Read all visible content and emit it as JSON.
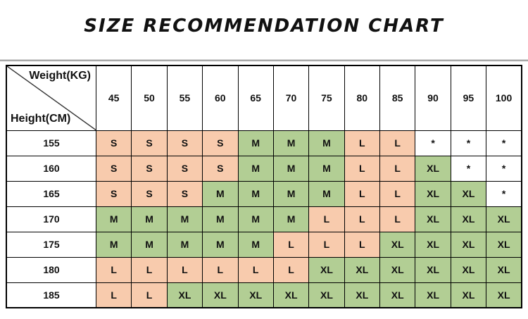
{
  "page": {
    "background": "#ffffff",
    "divider_color": "#8a8a8a"
  },
  "chart_data": {
    "type": "table",
    "title": "SIZE RECOMMENDATION CHART",
    "x_header": "Weight(KG)",
    "y_header": "Height(CM)",
    "columns_weights_kg": [
      "45",
      "50",
      "55",
      "60",
      "65",
      "70",
      "75",
      "80",
      "85",
      "90",
      "95",
      "100"
    ],
    "rows_heights_cm": [
      "155",
      "160",
      "165",
      "170",
      "175",
      "180",
      "185"
    ],
    "cells": [
      [
        "S",
        "S",
        "S",
        "S",
        "M",
        "M",
        "M",
        "L",
        "L",
        "*",
        "*",
        "*"
      ],
      [
        "S",
        "S",
        "S",
        "S",
        "M",
        "M",
        "M",
        "L",
        "L",
        "XL",
        "*",
        "*"
      ],
      [
        "S",
        "S",
        "S",
        "M",
        "M",
        "M",
        "M",
        "L",
        "L",
        "XL",
        "XL",
        "*"
      ],
      [
        "M",
        "M",
        "M",
        "M",
        "M",
        "M",
        "L",
        "L",
        "L",
        "XL",
        "XL",
        "XL"
      ],
      [
        "M",
        "M",
        "M",
        "M",
        "M",
        "L",
        "L",
        "L",
        "XL",
        "XL",
        "XL",
        "XL"
      ],
      [
        "L",
        "L",
        "L",
        "L",
        "L",
        "L",
        "XL",
        "XL",
        "XL",
        "XL",
        "XL",
        "XL"
      ],
      [
        "L",
        "L",
        "XL",
        "XL",
        "XL",
        "XL",
        "XL",
        "XL",
        "XL",
        "XL",
        "XL",
        "XL"
      ]
    ],
    "no_size_marker": "*",
    "cell_fill_colors": {
      "S": "#F8CBAD",
      "M": "#B2CE94",
      "L": "#F8CBAD",
      "XL": "#B2CE94",
      "*": "#FFFFFF"
    },
    "border_color": "#000000",
    "layout": {
      "grid": "on",
      "corner_diagonal": "top-left to bottom-right"
    }
  }
}
